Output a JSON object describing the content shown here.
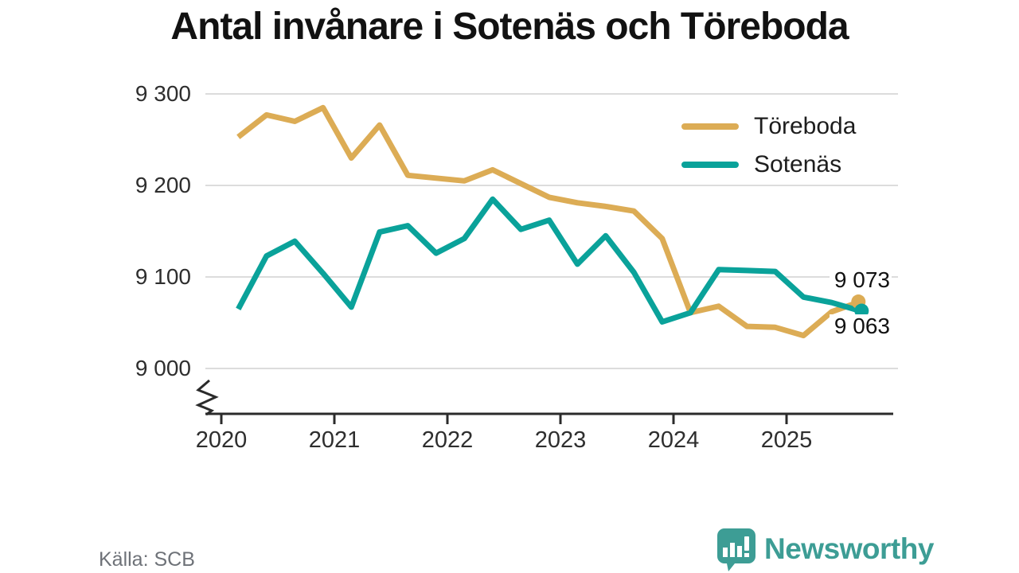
{
  "title": "Antal invånare i Sotenäs och Töreboda",
  "source": "Källa: SCB",
  "logo": {
    "text": "Newsworthy",
    "color": "#3d9d95"
  },
  "colors": {
    "toreboda": "#dcac55",
    "sotenas": "#0aa29a",
    "grid": "#dcdcdc",
    "axis": "#2b2b2b",
    "label": "#2e2e2e"
  },
  "chart_data": {
    "type": "line",
    "title": "Antal invånare i Sotenäs och Töreboda",
    "xlabel": "",
    "ylabel": "",
    "grid": "horizontal",
    "legend_position": "top-right",
    "y_axis_break": true,
    "ylim": [
      9000,
      9300
    ],
    "x_start": 2020.15,
    "x_step": 0.25,
    "y_ticks": [
      {
        "label": "9 000",
        "value": 9000
      },
      {
        "label": "9 100",
        "value": 9100
      },
      {
        "label": "9 200",
        "value": 9200
      },
      {
        "label": "9 300",
        "value": 9300
      }
    ],
    "x_ticks": [
      {
        "label": "2020",
        "value": 2020
      },
      {
        "label": "2021",
        "value": 2021
      },
      {
        "label": "2022",
        "value": 2022
      },
      {
        "label": "2023",
        "value": 2023
      },
      {
        "label": "2024",
        "value": 2024
      },
      {
        "label": "2025",
        "value": 2025
      }
    ],
    "series": [
      {
        "name": "Töreboda",
        "color": "#dcac55",
        "end_label": "9 073",
        "values": [
          9253,
          9277,
          9270,
          9285,
          9230,
          9266,
          9211,
          9208,
          9205,
          9217,
          9202,
          9187,
          9181,
          9177,
          9172,
          9142,
          9061,
          9068,
          9046,
          9045,
          9036,
          9062,
          9073
        ]
      },
      {
        "name": "Sotenäs",
        "color": "#0aa29a",
        "end_label": "9 063",
        "values": [
          9065,
          9123,
          9139,
          9104,
          9067,
          9149,
          9156,
          9126,
          9142,
          9185,
          9152,
          9162,
          9114,
          9145,
          9105,
          9051,
          9061,
          9108,
          9107,
          9106,
          9078,
          9072,
          9063
        ]
      }
    ]
  }
}
